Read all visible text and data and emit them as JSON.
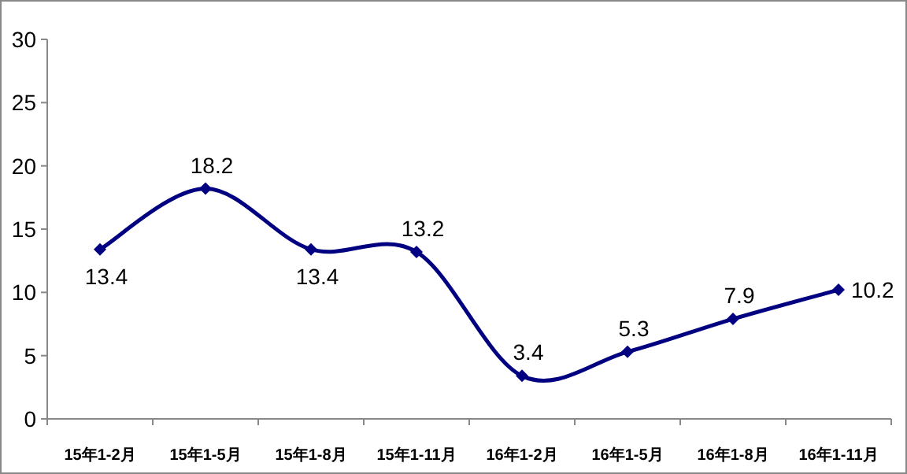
{
  "chart_data": {
    "type": "line",
    "categories": [
      "15年1-2月",
      "15年1-5月",
      "15年1-8月",
      "15年1-11月",
      "16年1-2月",
      "16年1-5月",
      "16年1-8月",
      "16年1-11月"
    ],
    "series": [
      {
        "color": "#000080",
        "values": [
          13.4,
          18.2,
          13.4,
          13.2,
          3.4,
          5.3,
          7.9,
          10.2
        ]
      }
    ],
    "ylim": [
      0,
      30
    ],
    "yticks": [
      0,
      5,
      10,
      15,
      20,
      25,
      30
    ],
    "marker": "diamond",
    "line_style": "solid",
    "data_labels": true
  }
}
